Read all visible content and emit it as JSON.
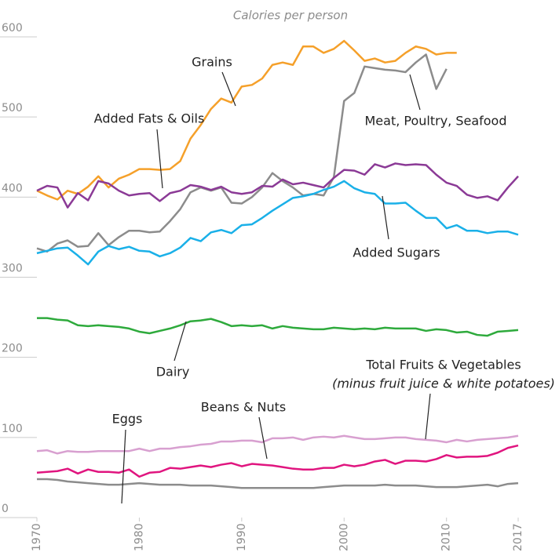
{
  "chart_data": {
    "type": "line",
    "title": "Calories per person",
    "x": [
      1970,
      1971,
      1972,
      1973,
      1974,
      1975,
      1976,
      1977,
      1978,
      1979,
      1980,
      1981,
      1982,
      1983,
      1984,
      1985,
      1986,
      1987,
      1988,
      1989,
      1990,
      1991,
      1992,
      1993,
      1994,
      1995,
      1996,
      1997,
      1998,
      1999,
      2000,
      2001,
      2002,
      2003,
      2004,
      2005,
      2006,
      2007,
      2008,
      2009,
      2010,
      2011,
      2012,
      2013,
      2014,
      2015,
      2016,
      2017
    ],
    "xlim": [
      1970,
      2017
    ],
    "xticks": [
      1970,
      1980,
      1990,
      2000,
      2010,
      2017
    ],
    "ylim": [
      0,
      600
    ],
    "yticks": [
      0,
      100,
      200,
      300,
      400,
      500,
      600
    ],
    "series": [
      {
        "name": "Grains",
        "color": "#f5a02a",
        "values": [
          408,
          402,
          397,
          408,
          404,
          413,
          426,
          412,
          423,
          428,
          435,
          435,
          434,
          435,
          445,
          473,
          490,
          510,
          523,
          518,
          538,
          540,
          548,
          565,
          568,
          565,
          588,
          588,
          580,
          585,
          595,
          583,
          570,
          573,
          568,
          570,
          580,
          588,
          585,
          578,
          580,
          580,
          null,
          null,
          null,
          null,
          null,
          null
        ]
      },
      {
        "name": "Added Fats & Oils",
        "color": "#8c8c8c",
        "values": [
          336,
          332,
          342,
          346,
          338,
          339,
          355,
          340,
          350,
          358,
          358,
          356,
          357,
          370,
          385,
          406,
          412,
          408,
          412,
          393,
          392,
          400,
          412,
          430,
          420,
          412,
          402,
          404,
          402,
          425,
          520,
          530,
          563,
          561,
          559,
          558,
          556,
          568,
          578,
          535,
          560,
          null,
          null,
          null,
          null,
          null,
          null,
          null
        ]
      },
      {
        "name": "Meat, Poultry, Seafood",
        "color": "#8b3a96",
        "values": [
          408,
          414,
          412,
          387,
          405,
          396,
          420,
          417,
          408,
          402,
          404,
          405,
          395,
          405,
          408,
          415,
          413,
          409,
          413,
          406,
          404,
          406,
          414,
          413,
          422,
          416,
          418,
          415,
          412,
          424,
          434,
          433,
          428,
          441,
          437,
          442,
          440,
          441,
          440,
          428,
          418,
          414,
          403,
          399,
          401,
          396,
          412,
          426
        ]
      },
      {
        "name": "Added Sugars",
        "color": "#1ab0e8",
        "values": [
          330,
          333,
          336,
          337,
          327,
          316,
          332,
          339,
          335,
          338,
          333,
          332,
          326,
          330,
          337,
          349,
          345,
          356,
          359,
          355,
          365,
          366,
          374,
          383,
          391,
          399,
          401,
          404,
          409,
          413,
          420,
          411,
          406,
          404,
          392,
          392,
          393,
          383,
          374,
          374,
          361,
          365,
          358,
          358,
          355,
          357,
          357,
          353
        ]
      },
      {
        "name": "Dairy",
        "color": "#2eaa3c",
        "values": [
          249,
          249,
          247,
          246,
          240,
          239,
          240,
          239,
          238,
          236,
          232,
          230,
          233,
          236,
          240,
          245,
          246,
          248,
          244,
          239,
          240,
          239,
          240,
          236,
          239,
          237,
          236,
          235,
          235,
          237,
          236,
          235,
          236,
          235,
          237,
          236,
          236,
          236,
          233,
          235,
          234,
          231,
          232,
          228,
          227,
          232,
          233,
          234
        ]
      },
      {
        "name": "Total Fruits & Vegetables",
        "note": "(minus fruit juice & white potatoes)",
        "color": "#d8a0d0",
        "values": [
          83,
          84,
          80,
          83,
          82,
          82,
          83,
          83,
          83,
          83,
          86,
          83,
          86,
          86,
          88,
          89,
          91,
          92,
          95,
          95,
          96,
          96,
          94,
          99,
          99,
          100,
          97,
          100,
          101,
          100,
          102,
          100,
          98,
          98,
          99,
          100,
          100,
          98,
          97,
          96,
          94,
          97,
          95,
          97,
          98,
          99,
          100,
          102
        ]
      },
      {
        "name": "Beans & Nuts",
        "color": "#e0157f",
        "values": [
          56,
          57,
          58,
          61,
          55,
          60,
          57,
          57,
          56,
          60,
          51,
          56,
          57,
          62,
          61,
          63,
          65,
          63,
          66,
          68,
          64,
          67,
          66,
          65,
          63,
          61,
          60,
          60,
          62,
          62,
          66,
          64,
          66,
          70,
          72,
          67,
          71,
          71,
          70,
          73,
          78,
          75,
          76,
          76,
          77,
          81,
          87,
          90
        ]
      },
      {
        "name": "Eggs",
        "color": "#8c8c8c",
        "values": [
          48,
          48,
          47,
          45,
          44,
          43,
          42,
          41,
          41,
          42,
          43,
          42,
          41,
          41,
          41,
          40,
          40,
          40,
          39,
          38,
          37,
          37,
          37,
          37,
          37,
          37,
          37,
          37,
          38,
          39,
          40,
          40,
          40,
          40,
          41,
          40,
          40,
          40,
          39,
          38,
          38,
          38,
          39,
          40,
          41,
          39,
          42,
          43
        ]
      }
    ]
  }
}
